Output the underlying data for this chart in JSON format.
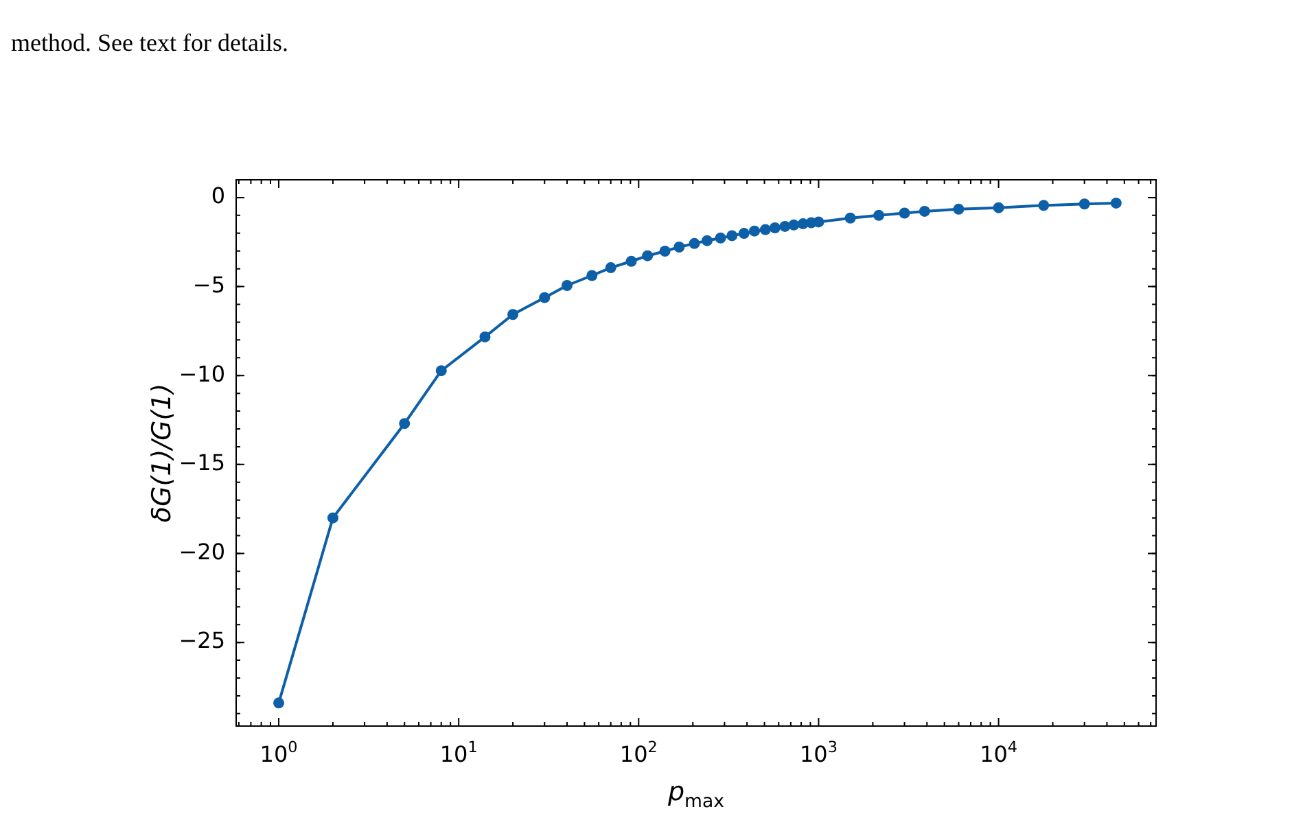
{
  "chart_data": {
    "type": "line",
    "xlabel": "p$_{max}$",
    "ylabel": "δG(1)/G(1)",
    "annotations": [
      "method. See text for details."
    ],
    "log": "x",
    "marker": "circle",
    "line_style": "solid",
    "legend": false,
    "xlim": [
      0.58,
      75000
    ],
    "ylim": [
      -29.7,
      1
    ],
    "xticks": [
      {
        "value": 1,
        "label": "10$^{0}$"
      },
      {
        "value": 10,
        "label": "10$^{1}$"
      },
      {
        "value": 100,
        "label": "10$^{2}$"
      },
      {
        "value": 1000,
        "label": "10$^{3}$"
      },
      {
        "value": 10000,
        "label": "10$^{4}$"
      }
    ],
    "yticks": [
      {
        "value": -25,
        "label": "−25"
      },
      {
        "value": -20,
        "label": "−20"
      },
      {
        "value": -15,
        "label": "−15"
      },
      {
        "value": -10,
        "label": "−10"
      },
      {
        "value": -5,
        "label": "−5"
      },
      0
    ],
    "series": [
      {
        "color": "#0d5fa8",
        "x": [
          1,
          2,
          5,
          8,
          14,
          20,
          30,
          40,
          55,
          70,
          91,
          112,
          140,
          168,
          204,
          240,
          285,
          330,
          385,
          440,
          506,
          572,
          650,
          728,
          819,
          910,
          1000,
          1500,
          2160,
          3000,
          3880,
          6000,
          10000,
          17800,
          30000,
          45000
        ],
        "values": [
          -28.4,
          -18.0,
          -12.7,
          -9.73,
          -7.83,
          -6.57,
          -5.62,
          -4.94,
          -4.38,
          -3.94,
          -3.58,
          -3.27,
          -3.01,
          -2.78,
          -2.58,
          -2.42,
          -2.27,
          -2.14,
          -2.01,
          -1.88,
          -1.8,
          -1.7,
          -1.62,
          -1.54,
          -1.47,
          -1.41,
          -1.37,
          -1.15,
          -1.0,
          -0.87,
          -0.77,
          -0.65,
          -0.57,
          -0.44,
          -0.36,
          -0.31
        ]
      }
    ]
  }
}
